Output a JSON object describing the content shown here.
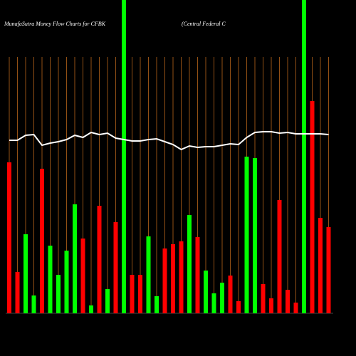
{
  "chart_data": {
    "type": "bar",
    "title": "MunafaSutra  Money Flow  Charts for CFBK",
    "subtitle": "(Central Federal C",
    "values": [
      212,
      58,
      111,
      25,
      203,
      95,
      54,
      88,
      153,
      105,
      11,
      151,
      34,
      128,
      440,
      54,
      54,
      108,
      24,
      91,
      97,
      101,
      138,
      107,
      60,
      28,
      43,
      53,
      17,
      220,
      218,
      41,
      21,
      159,
      33,
      15,
      440,
      298,
      134,
      121
    ],
    "colors": [
      "#ff0000",
      "#ff0000",
      "#00ff00",
      "#00ff00",
      "#ff0000",
      "#00ff00",
      "#00ff00",
      "#00ff00",
      "#00ff00",
      "#ff0000",
      "#00ff00",
      "#ff0000",
      "#00ff00",
      "#ff0000",
      "#00ff00",
      "#ff0000",
      "#ff0000",
      "#00ff00",
      "#00ff00",
      "#ff0000",
      "#ff0000",
      "#ff0000",
      "#00ff00",
      "#ff0000",
      "#00ff00",
      "#00ff00",
      "#00ff00",
      "#ff0000",
      "#ff0000",
      "#00ff00",
      "#00ff00",
      "#ff0000",
      "#ff0000",
      "#ff0000",
      "#ff0000",
      "#ff0000",
      "#00ff00",
      "#ff0000",
      "#ff0000",
      "#ff0000"
    ],
    "line": {
      "color": "#ffffff",
      "values": [
        243,
        243,
        250,
        251,
        236,
        239,
        241,
        244,
        250,
        247,
        254,
        251,
        253,
        246,
        244,
        242,
        242,
        244,
        245,
        241,
        237,
        230,
        235,
        233,
        234,
        234,
        236,
        238,
        237,
        247,
        254,
        255,
        255,
        253,
        254,
        252,
        252,
        252,
        252,
        251
      ]
    },
    "ylim": [
      0,
      440
    ],
    "grid": true,
    "grid_color": "#b8651b"
  }
}
